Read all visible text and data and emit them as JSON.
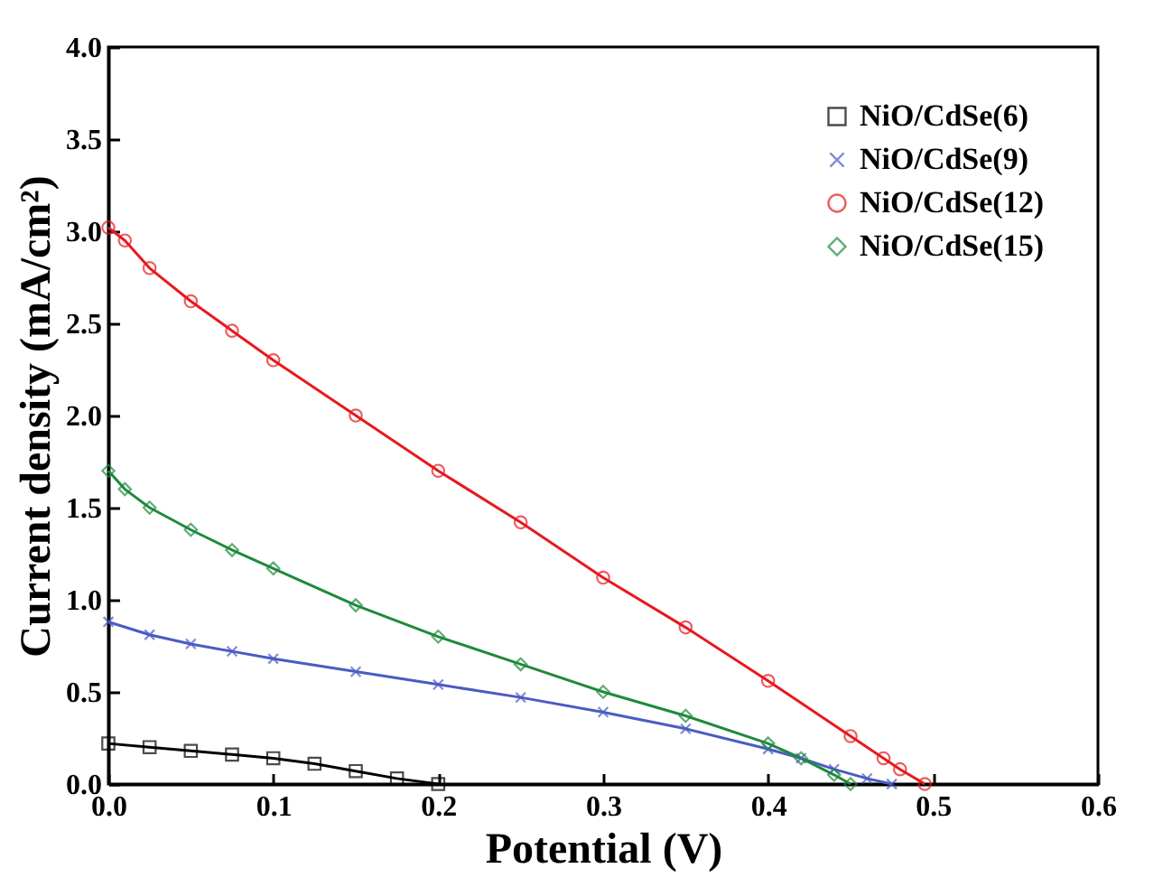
{
  "chart_data": {
    "type": "line",
    "xlabel": "Potential (V)",
    "ylabel": "Current density (mA/cm²)",
    "xlim": [
      0,
      0.6
    ],
    "ylim": [
      0,
      4.0
    ],
    "xticks": [
      {
        "value": 0,
        "label": "0.0"
      },
      0.1,
      0.2,
      0.3,
      0.4,
      0.5,
      0.6
    ],
    "yticks": [
      {
        "value": 0,
        "label": "0.0"
      },
      0.5,
      {
        "value": 1,
        "label": "1.0"
      },
      1.5,
      {
        "value": 2,
        "label": "2.0"
      },
      2.5,
      {
        "value": 3,
        "label": "3.0"
      },
      3.5,
      {
        "value": 4,
        "label": "4.0"
      }
    ],
    "legend": "top right",
    "line_style": "solid",
    "series": [
      {
        "name": "NiO/CdSe(6)",
        "color": "#000000",
        "marker": "square",
        "x": [
          0,
          0.025,
          0.05,
          0.075,
          0.1,
          0.125,
          0.15,
          0.175,
          0.2
        ],
        "values": [
          0.22,
          0.2,
          0.18,
          0.16,
          0.14,
          0.11,
          0.07,
          0.03,
          0.0
        ]
      },
      {
        "name": "NiO/CdSe(9)",
        "color": "#4a5bc4",
        "marker": "cross",
        "x": [
          0,
          0.025,
          0.05,
          0.075,
          0.1,
          0.15,
          0.2,
          0.25,
          0.3,
          0.35,
          0.4,
          0.42,
          0.44,
          0.46,
          0.475
        ],
        "values": [
          0.88,
          0.81,
          0.76,
          0.72,
          0.68,
          0.61,
          0.54,
          0.47,
          0.39,
          0.3,
          0.19,
          0.14,
          0.08,
          0.03,
          0.0
        ]
      },
      {
        "name": "NiO/CdSe(12)",
        "color": "#e8191e",
        "marker": "circle",
        "x": [
          0,
          0.01,
          0.025,
          0.05,
          0.075,
          0.1,
          0.15,
          0.2,
          0.25,
          0.3,
          0.35,
          0.4,
          0.45,
          0.47,
          0.48,
          0.495
        ],
        "values": [
          3.02,
          2.95,
          2.8,
          2.62,
          2.46,
          2.3,
          2.0,
          1.7,
          1.42,
          1.12,
          0.85,
          0.56,
          0.26,
          0.14,
          0.08,
          0.0
        ]
      },
      {
        "name": "NiO/CdSe(15)",
        "color": "#1e8a3c",
        "marker": "diamond",
        "x": [
          0,
          0.01,
          0.025,
          0.05,
          0.075,
          0.1,
          0.15,
          0.2,
          0.25,
          0.3,
          0.35,
          0.4,
          0.42,
          0.44,
          0.45
        ],
        "values": [
          1.7,
          1.6,
          1.5,
          1.38,
          1.27,
          1.17,
          0.97,
          0.8,
          0.65,
          0.5,
          0.37,
          0.22,
          0.14,
          0.05,
          0.0
        ]
      }
    ]
  }
}
